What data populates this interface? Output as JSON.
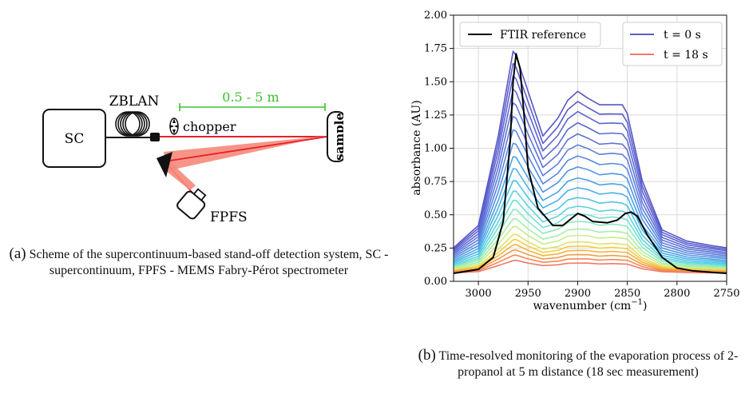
{
  "scheme": {
    "sc_label": "SC",
    "fiber_label": "ZBLAN",
    "distance_label": "0.5 - 5 m",
    "chopper_label": "chopper",
    "sample_label": "sample",
    "fpfs_label": "FPFS",
    "colors": {
      "laser": "#e8202a",
      "beam_fill": "#f58a7a",
      "distance": "#3bbf2c"
    }
  },
  "caption_a": {
    "label": "(a)",
    "text": " Scheme of the supercontinuum-based stand-off detection system, SC - supercontinuum, FPFS - MEMS Fabry-Pérot spectrometer"
  },
  "caption_b": {
    "label": "(b)",
    "text": " Time-resolved monitoring of the evaporation process of 2-propanol at 5 m distance (18 sec measurement)"
  },
  "chart_data": {
    "type": "line",
    "xlabel": "wavenumber (cm",
    "xlabel_sup": "−1",
    "xlabel_end": ")",
    "ylabel": "absorbance (AU)",
    "xlim": [
      3025,
      2750
    ],
    "ylim": [
      0,
      2.0
    ],
    "xticks": [
      3000,
      2950,
      2900,
      2850,
      2800,
      2750
    ],
    "yticks": [
      "0.00",
      "0.25",
      "0.50",
      "0.75",
      "1.00",
      "1.25",
      "1.50",
      "1.75",
      "2.00"
    ],
    "grid": true,
    "legend_left": {
      "position": "top-left",
      "entries": [
        {
          "label": "FTIR reference",
          "color": "#000000"
        }
      ]
    },
    "legend_right": {
      "position": "top-right",
      "entries": [
        {
          "label": "t = 0 s",
          "color": "#5a5cc8"
        },
        {
          "label": "t = 18 s",
          "color": "#f07a6a"
        }
      ]
    },
    "peak_x": [
      3025,
      3000,
      2980,
      2965,
      2962,
      2950,
      2935,
      2920,
      2910,
      2900,
      2890,
      2878,
      2865,
      2855,
      2850,
      2835,
      2815,
      2790,
      2765,
      2750
    ],
    "peak_shape": [
      0.12,
      0.22,
      0.62,
      1.0,
      0.98,
      0.82,
      0.62,
      0.7,
      0.78,
      0.82,
      0.79,
      0.76,
      0.76,
      0.76,
      0.72,
      0.42,
      0.2,
      0.15,
      0.13,
      0.12
    ],
    "series": [
      {
        "color": "#5656c6",
        "amp": 1.68
      },
      {
        "color": "#5a5ecc",
        "amp": 1.59
      },
      {
        "color": "#5d63d0",
        "amp": 1.5
      },
      {
        "color": "#5e6ad4",
        "amp": 1.4
      },
      {
        "color": "#5f72d8",
        "amp": 1.3
      },
      {
        "color": "#5c7ddd",
        "amp": 1.2
      },
      {
        "color": "#5888e0",
        "amp": 1.1
      },
      {
        "color": "#5294e3",
        "amp": 1.0
      },
      {
        "color": "#4ca2e6",
        "amp": 0.9
      },
      {
        "color": "#4ab2e8",
        "amp": 0.81
      },
      {
        "color": "#4fc3e6",
        "amp": 0.72
      },
      {
        "color": "#5ad3e0",
        "amp": 0.64
      },
      {
        "color": "#6ee0d2",
        "amp": 0.57
      },
      {
        "color": "#8aeac0",
        "amp": 0.5
      },
      {
        "color": "#a8eea6",
        "amp": 0.43
      },
      {
        "color": "#c6ee8a",
        "amp": 0.37
      },
      {
        "color": "#e2e06a",
        "amp": 0.31
      },
      {
        "color": "#f4cd45",
        "amp": 0.27
      },
      {
        "color": "#f7b23a",
        "amp": 0.23
      },
      {
        "color": "#f49a45",
        "amp": 0.19
      },
      {
        "color": "#f28a55",
        "amp": 0.15
      },
      {
        "color": "#f07a6a",
        "amp": 0.11
      }
    ],
    "ftir": {
      "color": "#000000",
      "x": [
        3025,
        3000,
        2985,
        2975,
        2968,
        2965,
        2962,
        2958,
        2954,
        2950,
        2940,
        2925,
        2915,
        2905,
        2900,
        2893,
        2885,
        2870,
        2860,
        2852,
        2846,
        2840,
        2830,
        2815,
        2800,
        2785,
        2770,
        2750
      ],
      "y": [
        0.06,
        0.09,
        0.18,
        0.45,
        1.05,
        1.5,
        1.71,
        1.6,
        1.25,
        0.85,
        0.55,
        0.42,
        0.42,
        0.48,
        0.51,
        0.49,
        0.45,
        0.44,
        0.46,
        0.51,
        0.52,
        0.49,
        0.35,
        0.18,
        0.1,
        0.08,
        0.07,
        0.06
      ]
    }
  }
}
